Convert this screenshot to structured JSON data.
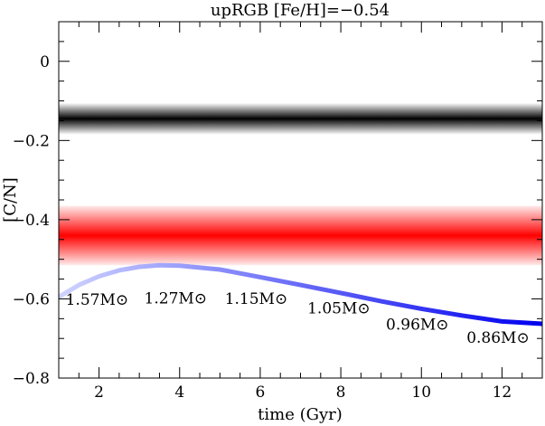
{
  "chart_data": {
    "type": "line",
    "title": "upRGB [Fe/H]=−0.54",
    "xlabel": "time (Gyr)",
    "ylabel": "[C/N]",
    "xlim": [
      1,
      13
    ],
    "ylim": [
      -0.8,
      0.1
    ],
    "xticks": [
      2,
      4,
      6,
      8,
      10,
      12
    ],
    "xtick_labels": [
      "2",
      "4",
      "6",
      "8",
      "10",
      "12"
    ],
    "yticks": [
      0,
      -0.2,
      -0.4,
      -0.6,
      -0.8
    ],
    "ytick_labels": [
      "0",
      "−0.2",
      "−0.4",
      "−0.6",
      "−0.8"
    ],
    "bands": [
      {
        "color": "#000000",
        "center": -0.145,
        "halfwidth": 0.04
      },
      {
        "color": "#ff0000",
        "center": -0.44,
        "halfwidth": 0.075
      }
    ],
    "series": [
      {
        "color_start": "#cfd4ff",
        "color_end": "#0000ee",
        "x": [
          1.0,
          1.5,
          2.0,
          2.5,
          3.0,
          3.5,
          4.0,
          5.0,
          6.0,
          7.0,
          8.0,
          9.0,
          10.0,
          11.0,
          12.0,
          13.0
        ],
        "y": [
          -0.595,
          -0.565,
          -0.543,
          -0.528,
          -0.519,
          -0.515,
          -0.516,
          -0.526,
          -0.545,
          -0.565,
          -0.585,
          -0.606,
          -0.625,
          -0.642,
          -0.657,
          -0.663
        ]
      }
    ],
    "annotations": [
      {
        "text": "1.57M⊙",
        "x": 1.95,
        "y": -0.615
      },
      {
        "text": "1.27M⊙",
        "x": 3.9,
        "y": -0.612
      },
      {
        "text": "1.15M⊙",
        "x": 5.9,
        "y": -0.613
      },
      {
        "text": "1.05M⊙",
        "x": 7.95,
        "y": -0.637
      },
      {
        "text": "0.96M⊙",
        "x": 9.9,
        "y": -0.678
      },
      {
        "text": "0.86M⊙",
        "x": 11.9,
        "y": -0.711
      }
    ]
  }
}
